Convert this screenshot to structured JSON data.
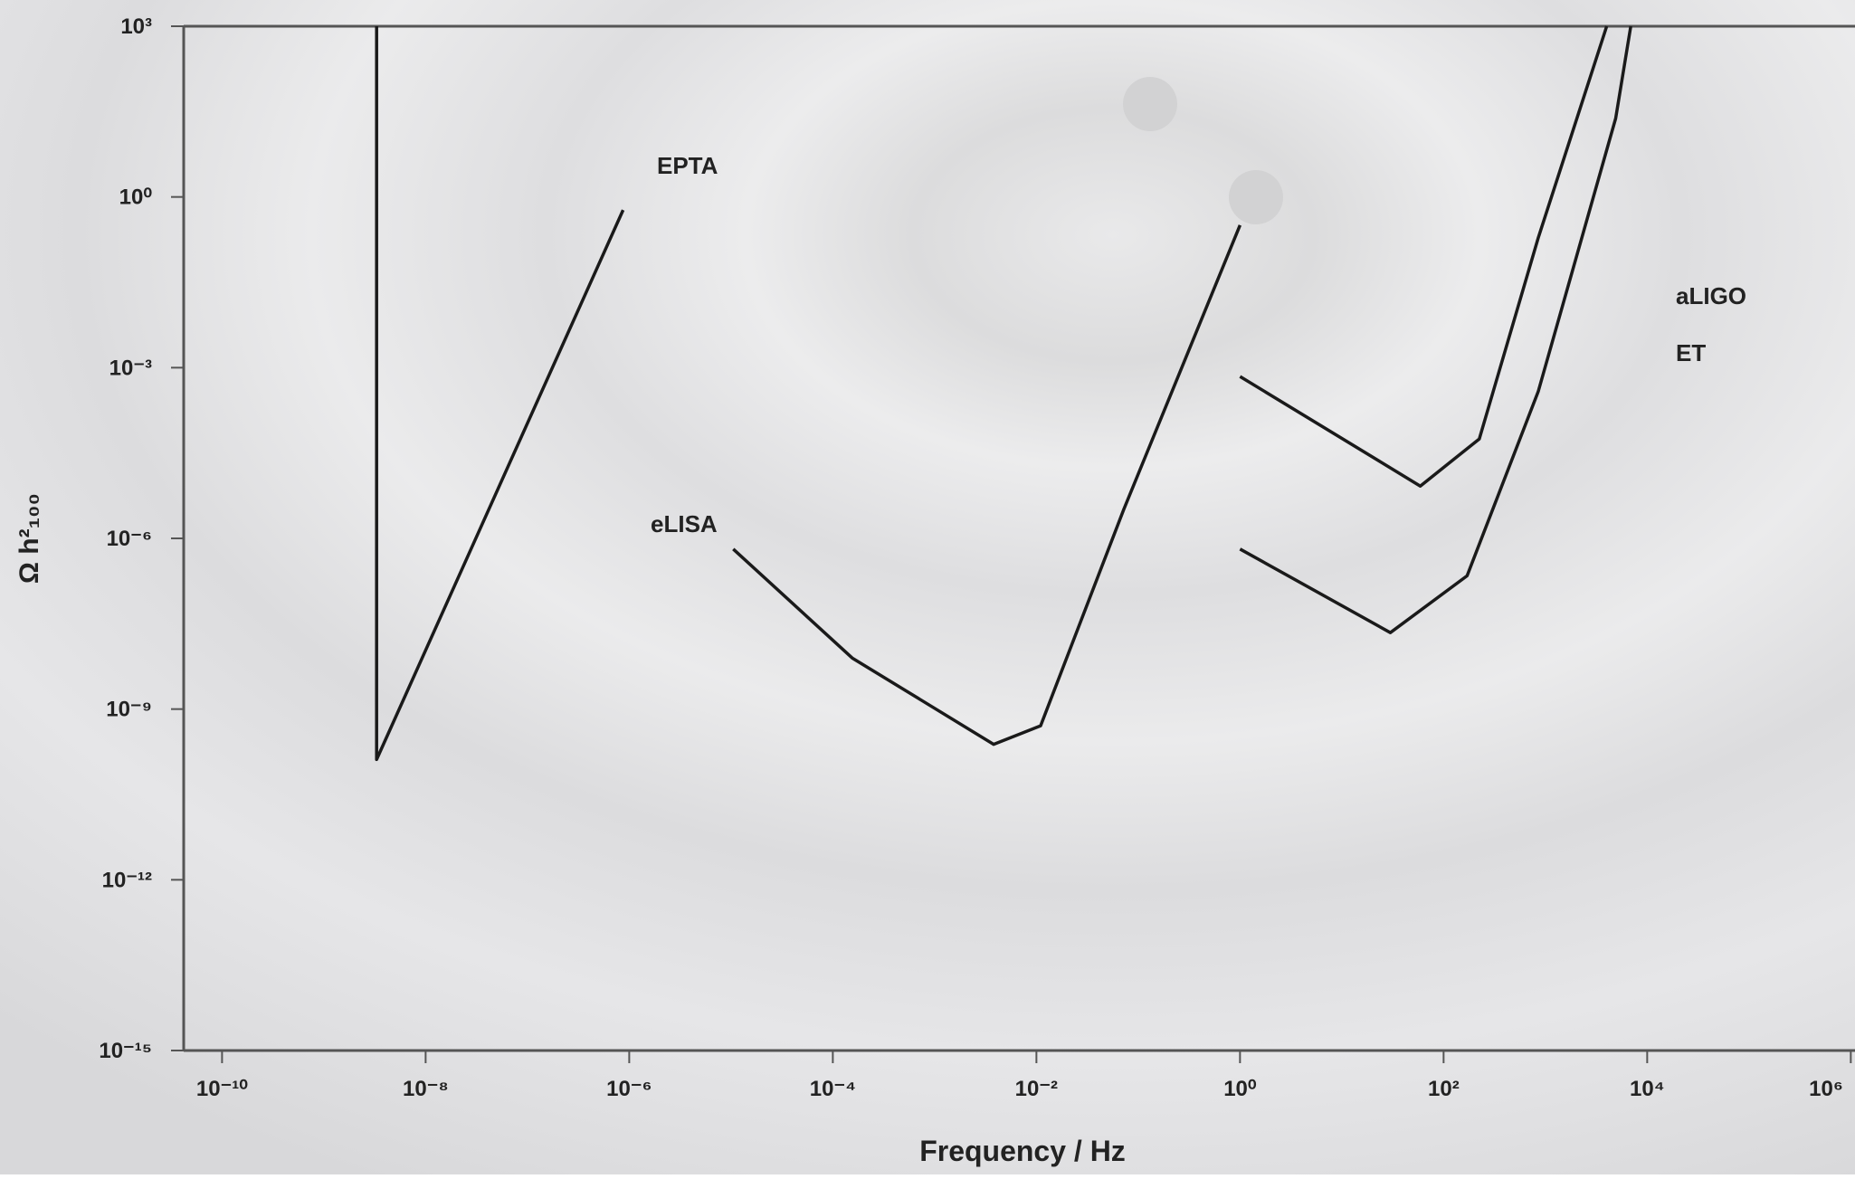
{
  "chart_data": {
    "type": "line",
    "x_label": "Frequency / Hz",
    "y_label": "Ω h²₁₀₀",
    "xscale": "log",
    "yscale": "log",
    "xlim": [
      4.2e-11,
      1100000.0
    ],
    "ylim": [
      1e-15,
      1000
    ],
    "xticks": [
      {
        "value": 1e-10,
        "label": "10⁻¹⁰"
      },
      {
        "value": 1e-08,
        "label": "10⁻⁸"
      },
      {
        "value": 1e-06,
        "label": "10⁻⁶"
      },
      {
        "value": 0.0001,
        "label": "10⁻⁴"
      },
      {
        "value": 0.01,
        "label": "10⁻²"
      },
      {
        "value": 1,
        "label": "10⁰"
      },
      {
        "value": 100,
        "label": "10²"
      },
      {
        "value": 10000,
        "label": "10⁴"
      },
      {
        "value": 1000000,
        "label": "10⁶"
      }
    ],
    "yticks": [
      {
        "value": 1000,
        "label": "10³"
      },
      {
        "value": 1,
        "label": "10⁰"
      },
      {
        "value": 0.001,
        "label": "10⁻³"
      },
      {
        "value": 1e-06,
        "label": "10⁻⁶"
      },
      {
        "value": 1e-09,
        "label": "10⁻⁹"
      },
      {
        "value": 1e-12,
        "label": "10⁻¹²"
      },
      {
        "value": 1e-15,
        "label": "10⁻¹⁵"
      }
    ],
    "series": [
      {
        "name": "EPTA",
        "color": "#1a1a1a",
        "x": [
          3.3e-09,
          3.3e-09,
          8.7e-07
        ],
        "values": [
          1000,
          1.3e-10,
          0.59
        ]
      },
      {
        "name": "eLISA",
        "color": "#1a1a1a",
        "x": [
          1.05e-05,
          0.000155,
          0.0038,
          0.011,
          0.072,
          1
        ],
        "values": [
          6.5e-07,
          7.9e-09,
          2.4e-10,
          5.1e-10,
          3.2e-06,
          0.32
        ]
      },
      {
        "name": "aLIGO",
        "color": "#1a1a1a",
        "x": [
          1,
          59,
          224,
          850,
          4000
        ],
        "values": [
          0.0007,
          8.3e-06,
          5.6e-05,
          0.19,
          1000
        ]
      },
      {
        "name": "ET",
        "color": "#1a1a1a",
        "x": [
          1,
          30,
          170,
          850,
          4900,
          6900
        ],
        "values": [
          6.5e-07,
          2.2e-08,
          2.2e-07,
          0.00038,
          24,
          1000
        ]
      }
    ]
  }
}
